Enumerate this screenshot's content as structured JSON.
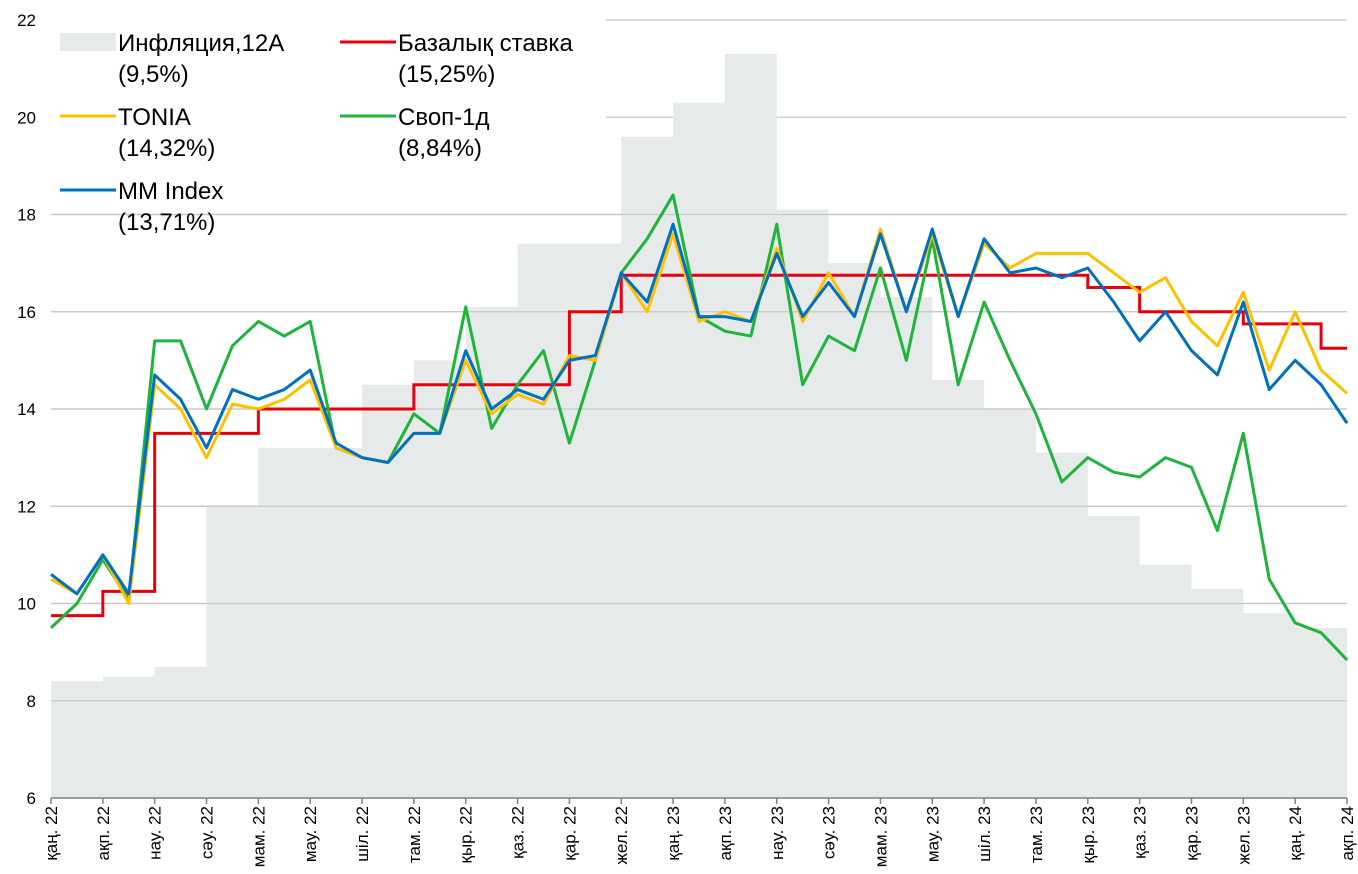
{
  "chart_data": {
    "type": "line",
    "legend": "upper left",
    "grid": true,
    "ylim": [
      6,
      22
    ],
    "yticks": [
      6,
      8,
      10,
      12,
      14,
      16,
      18,
      20,
      22
    ],
    "categories": [
      "қаң. 22",
      null,
      "ақп. 22",
      null,
      "нау. 22",
      null,
      "сәу. 22",
      null,
      "мам. 22",
      null,
      "мау. 22",
      null,
      "шіл. 22",
      null,
      "там. 22",
      null,
      "қыр. 22",
      null,
      "қаз. 22",
      null,
      "қар. 22",
      null,
      "жел. 22",
      null,
      "қаң. 23",
      null,
      "ақп. 23",
      null,
      "нау. 23",
      null,
      "сәу. 23",
      null,
      "мам. 23",
      null,
      "мау. 23",
      null,
      "шіл. 23",
      null,
      "там. 23",
      null,
      "қыр. 23",
      null,
      "қаз. 23",
      null,
      "қар. 23",
      null,
      "жел. 23",
      null,
      "қаң. 24",
      null,
      "ақп. 24"
    ],
    "series": [
      {
        "name": "Инфляция,12А",
        "legend_value": "(9,5%)",
        "style": "step-area",
        "color": "#e6eaeb",
        "values": [
          8.4,
          8.4,
          8.5,
          8.5,
          8.7,
          8.7,
          12.0,
          12.0,
          13.2,
          13.2,
          13.2,
          13.2,
          14.5,
          14.5,
          15.0,
          15.0,
          16.1,
          16.1,
          17.4,
          17.4,
          17.4,
          17.4,
          19.6,
          19.6,
          20.3,
          20.3,
          21.3,
          21.3,
          18.1,
          18.1,
          17.0,
          17.0,
          16.3,
          16.3,
          14.6,
          14.6,
          14.0,
          14.0,
          13.1,
          13.1,
          11.8,
          11.8,
          10.8,
          10.8,
          10.3,
          10.3,
          9.8,
          9.8,
          9.5,
          9.5,
          9.5
        ]
      },
      {
        "name": "Базалық ставка",
        "legend_value": "(15,25%)",
        "style": "step",
        "color": "#e8000b",
        "values": [
          9.75,
          9.75,
          10.25,
          10.25,
          13.5,
          13.5,
          13.5,
          13.5,
          14.0,
          14.0,
          14.0,
          14.0,
          14.0,
          14.0,
          14.5,
          14.5,
          14.5,
          14.5,
          14.5,
          14.5,
          16.0,
          16.0,
          16.75,
          16.75,
          16.75,
          16.75,
          16.75,
          16.75,
          16.75,
          16.75,
          16.75,
          16.75,
          16.75,
          16.75,
          16.75,
          16.75,
          16.75,
          16.75,
          16.75,
          16.75,
          16.5,
          16.5,
          16.0,
          16.0,
          16.0,
          16.0,
          15.75,
          15.75,
          15.75,
          15.25,
          15.25
        ]
      },
      {
        "name": "TONIA",
        "legend_value": "(14,32%)",
        "style": "line",
        "color": "#ffc000",
        "values": [
          10.5,
          10.2,
          11.0,
          10.0,
          14.5,
          14.0,
          13.0,
          14.1,
          14.0,
          14.2,
          14.6,
          13.2,
          13.0,
          12.9,
          13.5,
          13.5,
          15.0,
          13.9,
          14.3,
          14.1,
          15.1,
          15.0,
          16.8,
          16.0,
          17.6,
          15.8,
          16.0,
          15.8,
          17.3,
          15.8,
          16.8,
          15.9,
          17.7,
          16.0,
          17.6,
          15.9,
          17.4,
          16.9,
          17.2,
          17.2,
          17.2,
          16.8,
          16.4,
          16.7,
          15.8,
          15.3,
          16.4,
          14.8,
          16.0,
          14.8,
          14.32
        ]
      },
      {
        "name": "Своп-1д",
        "legend_value": "(8,84%)",
        "style": "line",
        "color": "#1db53a",
        "values": [
          9.5,
          10.0,
          10.9,
          10.1,
          15.4,
          15.4,
          14.0,
          15.3,
          15.8,
          15.5,
          15.8,
          13.2,
          13.0,
          12.9,
          13.9,
          13.5,
          16.1,
          13.6,
          14.5,
          15.2,
          13.3,
          15.0,
          16.8,
          17.5,
          18.4,
          15.9,
          15.6,
          15.5,
          17.8,
          14.5,
          15.5,
          15.2,
          16.9,
          15.0,
          17.5,
          14.5,
          16.2,
          15.0,
          13.9,
          12.5,
          13.0,
          12.7,
          12.6,
          13.0,
          12.8,
          11.5,
          13.5,
          10.5,
          9.6,
          9.4,
          8.84
        ]
      },
      {
        "name": "MM Index",
        "legend_value": "(13,71%)",
        "style": "line",
        "color": "#0070c0",
        "values": [
          10.6,
          10.2,
          11.0,
          10.2,
          14.7,
          14.2,
          13.2,
          14.4,
          14.2,
          14.4,
          14.8,
          13.3,
          13.0,
          12.9,
          13.5,
          13.5,
          15.2,
          14.0,
          14.4,
          14.2,
          15.0,
          15.1,
          16.8,
          16.2,
          17.8,
          15.9,
          15.9,
          15.8,
          17.2,
          15.9,
          16.6,
          15.9,
          17.6,
          16.0,
          17.7,
          15.9,
          17.5,
          16.8,
          16.9,
          16.7,
          16.9,
          16.2,
          15.4,
          16.0,
          15.2,
          14.7,
          16.2,
          14.4,
          15.0,
          14.5,
          13.71
        ]
      }
    ]
  }
}
